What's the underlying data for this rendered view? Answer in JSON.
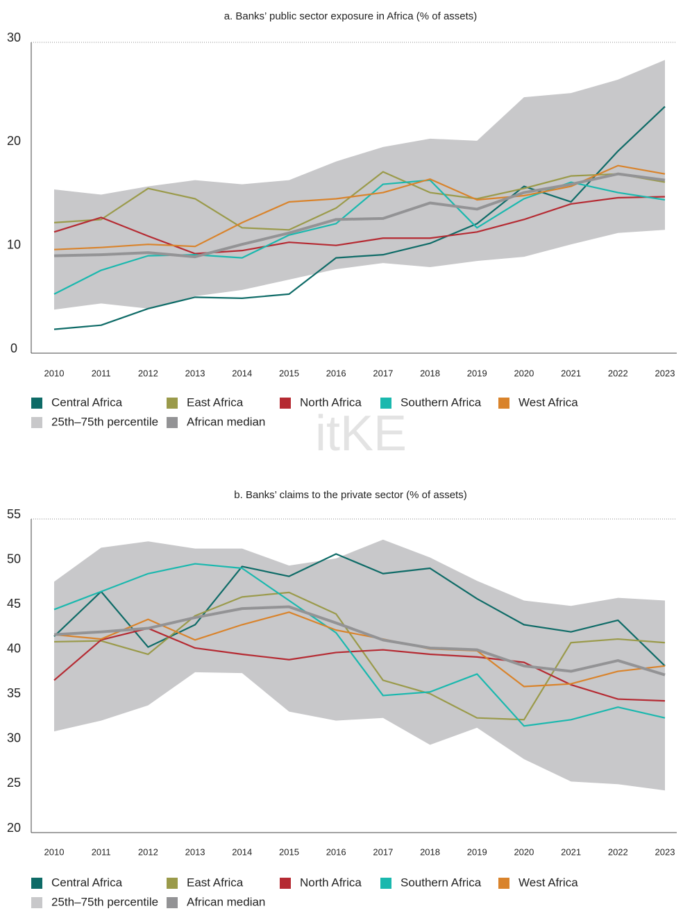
{
  "watermark": "itKE",
  "chart_data": [
    {
      "type": "line",
      "title": "a. Banks’ public sector exposure in Africa (% of assets)",
      "categories": [
        "2010",
        "2011",
        "2012",
        "2013",
        "2014",
        "2015",
        "2016",
        "2017",
        "2018",
        "2019",
        "2020",
        "2021",
        "2022",
        "2023"
      ],
      "ylim": [
        0,
        30
      ],
      "yticks": [
        0,
        10,
        20,
        30
      ],
      "band": {
        "name": "25th–75th percentile",
        "color": "#c8c8ca",
        "upper": [
          15.8,
          15.3,
          16.1,
          16.7,
          16.3,
          16.7,
          18.5,
          19.9,
          20.7,
          20.5,
          24.7,
          25.1,
          26.4,
          28.3
        ],
        "lower": [
          4.2,
          4.8,
          4.3,
          5.5,
          6.1,
          7.1,
          8.1,
          8.7,
          8.3,
          8.9,
          9.3,
          10.5,
          11.6,
          11.9
        ]
      },
      "series": [
        {
          "name": "Central Africa",
          "color": "#0e6b67",
          "values": [
            2.3,
            2.7,
            4.3,
            5.4,
            5.3,
            5.7,
            9.2,
            9.5,
            10.6,
            12.5,
            16.1,
            14.6,
            19.5,
            23.8
          ]
        },
        {
          "name": "East Africa",
          "color": "#9a9a4a",
          "values": [
            12.6,
            12.9,
            15.9,
            14.9,
            12.1,
            11.9,
            14.0,
            17.5,
            15.5,
            14.9,
            15.9,
            17.1,
            17.3,
            16.5
          ]
        },
        {
          "name": "North Africa",
          "color": "#b52a32",
          "values": [
            11.7,
            13.1,
            11.3,
            9.6,
            9.9,
            10.7,
            10.4,
            11.1,
            11.1,
            11.7,
            12.9,
            14.4,
            15.0,
            15.1
          ]
        },
        {
          "name": "Southern Africa",
          "color": "#1ab8ae",
          "values": [
            5.7,
            8.0,
            9.4,
            9.5,
            9.2,
            11.4,
            12.5,
            16.3,
            16.7,
            12.1,
            14.9,
            16.5,
            15.5,
            14.8
          ]
        },
        {
          "name": "West Africa",
          "color": "#d9832b",
          "values": [
            10.0,
            10.2,
            10.5,
            10.3,
            12.6,
            14.6,
            14.9,
            15.5,
            16.8,
            14.8,
            15.2,
            16.1,
            18.1,
            17.3
          ]
        },
        {
          "name": "African median",
          "color": "#939395",
          "values": [
            9.4,
            9.5,
            9.7,
            9.3,
            10.5,
            11.6,
            12.9,
            13.0,
            14.5,
            13.9,
            15.5,
            16.3,
            17.3,
            16.7
          ]
        }
      ]
    },
    {
      "type": "line",
      "title": "b. Banks’ claims to the private sector (% of assets)",
      "categories": [
        "2010",
        "2011",
        "2012",
        "2013",
        "2014",
        "2015",
        "2016",
        "2017",
        "2018",
        "2019",
        "2020",
        "2021",
        "2022",
        "2023"
      ],
      "ylim": [
        20,
        55
      ],
      "yticks": [
        20,
        25,
        30,
        35,
        40,
        45,
        50,
        55
      ],
      "band": {
        "name": "25th–75th percentile",
        "color": "#c8c8ca",
        "upper": [
          48.0,
          51.8,
          52.5,
          51.7,
          51.7,
          49.8,
          50.6,
          52.7,
          50.7,
          48.1,
          45.9,
          45.3,
          46.2,
          45.9
        ],
        "lower": [
          31.3,
          32.5,
          34.2,
          37.9,
          37.8,
          33.5,
          32.5,
          32.8,
          29.8,
          31.7,
          28.2,
          25.7,
          25.4,
          24.7
        ]
      },
      "series": [
        {
          "name": "Central Africa",
          "color": "#0e6b67",
          "values": [
            41.9,
            46.9,
            40.7,
            43.2,
            49.7,
            48.6,
            51.1,
            48.9,
            49.5,
            46.1,
            43.2,
            42.4,
            43.7,
            38.6
          ]
        },
        {
          "name": "East Africa",
          "color": "#9a9a4a",
          "values": [
            41.3,
            41.4,
            39.9,
            44.2,
            46.3,
            46.8,
            44.4,
            37.0,
            35.5,
            32.8,
            32.6,
            41.2,
            41.6,
            41.2
          ]
        },
        {
          "name": "North Africa",
          "color": "#b52a32",
          "values": [
            37.0,
            41.5,
            42.8,
            40.6,
            39.9,
            39.3,
            40.1,
            40.4,
            39.9,
            39.6,
            39.0,
            36.5,
            34.9,
            34.7
          ]
        },
        {
          "name": "Southern Africa",
          "color": "#1ab8ae",
          "values": [
            44.9,
            46.9,
            48.9,
            50.0,
            49.5,
            45.9,
            42.3,
            35.3,
            35.7,
            37.7,
            31.9,
            32.6,
            34.0,
            32.8
          ]
        },
        {
          "name": "West Africa",
          "color": "#d9832b",
          "values": [
            42.1,
            41.6,
            43.8,
            41.5,
            43.2,
            44.6,
            42.6,
            41.6,
            40.5,
            40.3,
            36.3,
            36.6,
            38.0,
            38.6
          ]
        },
        {
          "name": "African median",
          "color": "#939395",
          "values": [
            42.1,
            42.4,
            42.8,
            44.0,
            45.0,
            45.2,
            43.4,
            41.5,
            40.6,
            40.4,
            38.6,
            38.0,
            39.2,
            37.6
          ]
        }
      ]
    }
  ]
}
